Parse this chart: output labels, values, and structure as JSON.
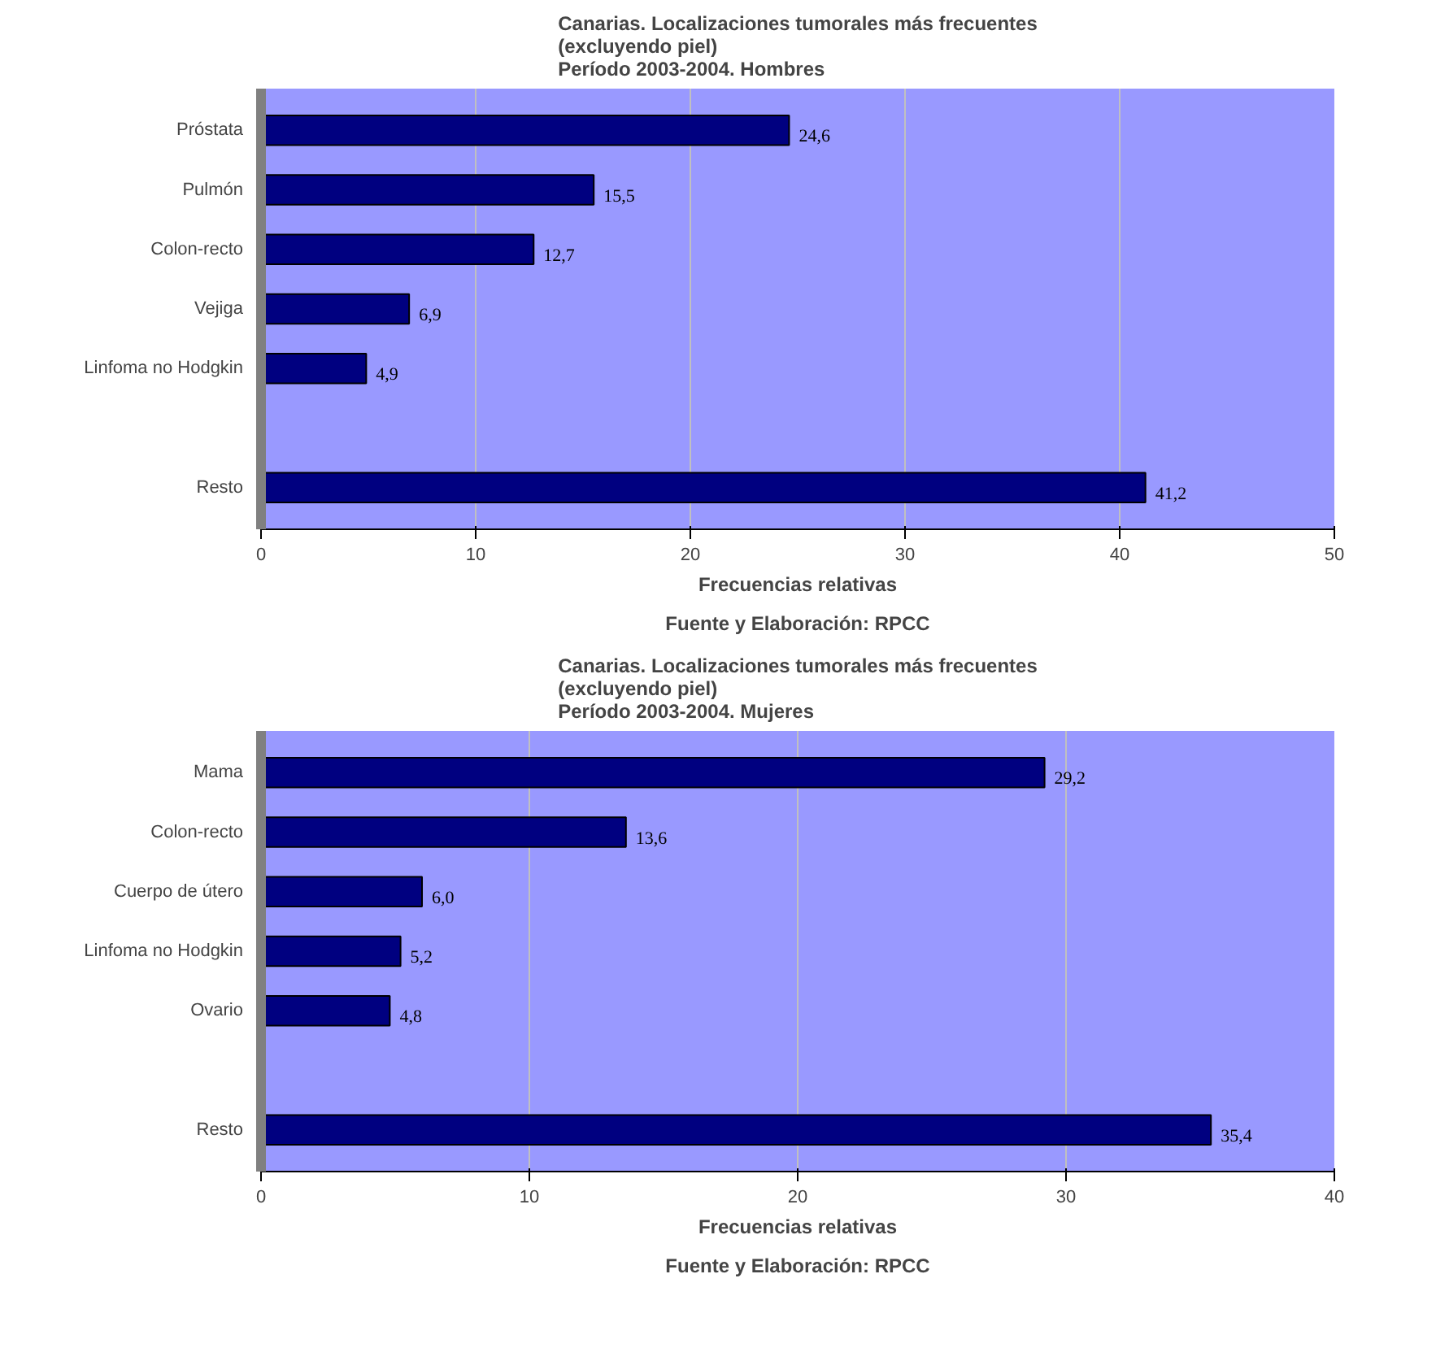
{
  "chart_data": [
    {
      "type": "bar",
      "orientation": "horizontal",
      "title": "Canarias. Localizaciones tumorales más frecuentes\n(excluyendo piel)\nPeríodo 2003-2004. Hombres",
      "xlabel": "Frecuencias relativas",
      "annotations": [
        "Fuente y Elaboración: RPCC"
      ],
      "categories": [
        "Próstata",
        "Pulmón",
        "Colon-recto",
        "Vejiga",
        "Linfoma no Hodgkin",
        null,
        "Resto"
      ],
      "values": [
        24.6,
        15.5,
        12.7,
        6.9,
        4.9,
        null,
        41.2
      ],
      "value_labels": [
        "24,6",
        "15,5",
        "12,7",
        "6,9",
        "4,9",
        null,
        "41,2"
      ],
      "color": "#000080",
      "xlim": [
        0,
        50
      ],
      "xticks": [
        0,
        10,
        20,
        30,
        40,
        50
      ],
      "grid": "x"
    },
    {
      "type": "bar",
      "orientation": "horizontal",
      "title": "Canarias. Localizaciones tumorales más frecuentes\n(excluyendo piel)\nPeríodo 2003-2004. Mujeres",
      "xlabel": "Frecuencias relativas",
      "annotations": [
        "Fuente y Elaboración: RPCC"
      ],
      "categories": [
        "Mama",
        "Colon-recto",
        "Cuerpo de útero",
        "Linfoma no Hodgkin",
        "Ovario",
        null,
        "Resto"
      ],
      "values": [
        29.2,
        13.6,
        6.0,
        5.2,
        4.8,
        null,
        35.4
      ],
      "value_labels": [
        "29,2",
        "13,6",
        "6,0",
        "5,2",
        "4,8",
        null,
        "35,4"
      ],
      "color": "#000080",
      "xlim": [
        0,
        40
      ],
      "xticks": [
        0,
        10,
        20,
        30,
        40
      ],
      "grid": "x"
    }
  ]
}
